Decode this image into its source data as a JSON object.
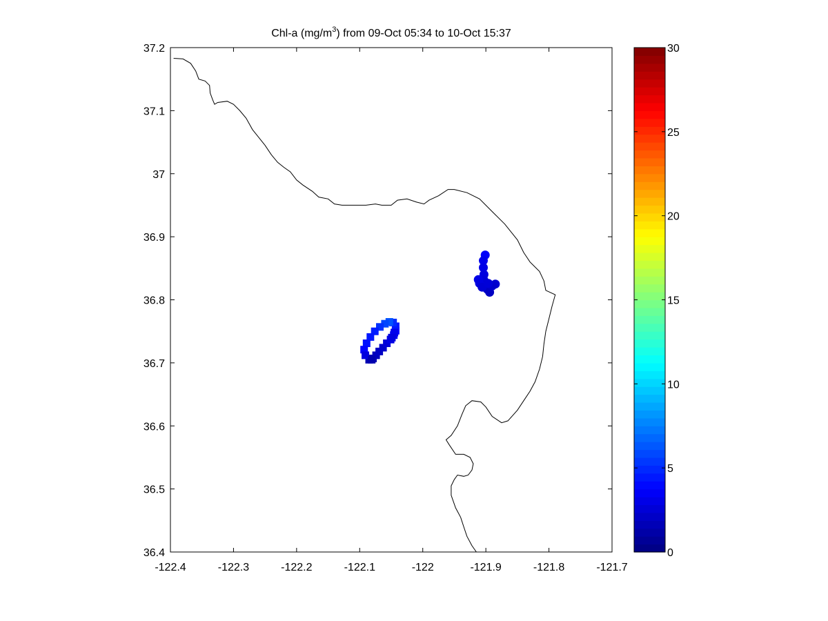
{
  "chart_data": {
    "type": "scatter",
    "title_prefix": "Chl-a (mg/m",
    "title_sup": "3",
    "title_suffix": ") from 09-Oct 05:34 to 10-Oct 15:37",
    "xlabel": "",
    "ylabel": "",
    "xlim": [
      -122.4,
      -121.7
    ],
    "ylim": [
      36.4,
      37.2
    ],
    "xticks": [
      "-122.4",
      "-122.3",
      "-122.2",
      "-122.1",
      "-122",
      "-121.9",
      "-121.8",
      "-121.7"
    ],
    "yticks": [
      "36.4",
      "36.5",
      "36.6",
      "36.7",
      "36.8",
      "36.9",
      "37",
      "37.1",
      "37.2"
    ],
    "grid": false,
    "colormap": "jet",
    "colorbar": {
      "range": [
        0,
        30
      ],
      "ticks": [
        "0",
        "5",
        "10",
        "15",
        "20",
        "25",
        "30"
      ]
    },
    "coastline": [
      [
        -122.395,
        37.183
      ],
      [
        -122.38,
        37.182
      ],
      [
        -122.368,
        37.175
      ],
      [
        -122.36,
        37.163
      ],
      [
        -122.355,
        37.15
      ],
      [
        -122.345,
        37.147
      ],
      [
        -122.338,
        37.14
      ],
      [
        -122.337,
        37.128
      ],
      [
        -122.333,
        37.117
      ],
      [
        -122.33,
        37.11
      ],
      [
        -122.325,
        37.113
      ],
      [
        -122.31,
        37.115
      ],
      [
        -122.3,
        37.11
      ],
      [
        -122.29,
        37.1
      ],
      [
        -122.28,
        37.088
      ],
      [
        -122.27,
        37.07
      ],
      [
        -122.262,
        37.06
      ],
      [
        -122.25,
        37.045
      ],
      [
        -122.24,
        37.03
      ],
      [
        -122.23,
        37.018
      ],
      [
        -122.22,
        37.01
      ],
      [
        -122.21,
        37.003
      ],
      [
        -122.2,
        36.99
      ],
      [
        -122.19,
        36.982
      ],
      [
        -122.175,
        36.972
      ],
      [
        -122.165,
        36.963
      ],
      [
        -122.15,
        36.96
      ],
      [
        -122.14,
        36.952
      ],
      [
        -122.128,
        36.95
      ],
      [
        -122.11,
        36.95
      ],
      [
        -122.09,
        36.95
      ],
      [
        -122.075,
        36.952
      ],
      [
        -122.065,
        36.95
      ],
      [
        -122.05,
        36.95
      ],
      [
        -122.04,
        36.958
      ],
      [
        -122.025,
        36.96
      ],
      [
        -122.01,
        36.955
      ],
      [
        -121.998,
        36.952
      ],
      [
        -121.99,
        36.958
      ],
      [
        -121.975,
        36.965
      ],
      [
        -121.96,
        36.975
      ],
      [
        -121.95,
        36.975
      ],
      [
        -121.93,
        36.97
      ],
      [
        -121.91,
        36.96
      ],
      [
        -121.89,
        36.94
      ],
      [
        -121.87,
        36.92
      ],
      [
        -121.85,
        36.895
      ],
      [
        -121.84,
        36.875
      ],
      [
        -121.83,
        36.86
      ],
      [
        -121.815,
        36.845
      ],
      [
        -121.808,
        36.83
      ],
      [
        -121.805,
        36.815
      ],
      [
        -121.79,
        36.808
      ],
      [
        -121.795,
        36.79
      ],
      [
        -121.8,
        36.77
      ],
      [
        -121.805,
        36.75
      ],
      [
        -121.808,
        36.73
      ],
      [
        -121.81,
        36.71
      ],
      [
        -121.815,
        36.69
      ],
      [
        -121.822,
        36.67
      ],
      [
        -121.83,
        36.655
      ],
      [
        -121.84,
        36.64
      ],
      [
        -121.85,
        36.625
      ],
      [
        -121.865,
        36.608
      ],
      [
        -121.875,
        36.605
      ],
      [
        -121.89,
        36.615
      ],
      [
        -121.9,
        36.63
      ],
      [
        -121.908,
        36.638
      ],
      [
        -121.922,
        36.64
      ],
      [
        -121.932,
        36.632
      ],
      [
        -121.938,
        36.618
      ],
      [
        -121.945,
        36.6
      ],
      [
        -121.955,
        36.585
      ],
      [
        -121.963,
        36.578
      ],
      [
        -121.958,
        36.57
      ],
      [
        -121.948,
        36.555
      ],
      [
        -121.935,
        36.555
      ],
      [
        -121.925,
        36.55
      ],
      [
        -121.92,
        36.54
      ],
      [
        -121.922,
        36.53
      ],
      [
        -121.928,
        36.522
      ],
      [
        -121.935,
        36.52
      ],
      [
        -121.945,
        36.522
      ],
      [
        -121.95,
        36.515
      ],
      [
        -121.955,
        36.505
      ],
      [
        -121.955,
        36.49
      ],
      [
        -121.948,
        36.47
      ],
      [
        -121.94,
        36.455
      ],
      [
        -121.935,
        36.44
      ],
      [
        -121.93,
        36.425
      ],
      [
        -121.922,
        36.41
      ],
      [
        -121.915,
        36.4
      ]
    ],
    "points": [
      {
        "x": -122.085,
        "y": 36.705,
        "value": 1.5,
        "marker": "square"
      },
      {
        "x": -122.079,
        "y": 36.707,
        "value": 1.6,
        "marker": "square"
      },
      {
        "x": -122.074,
        "y": 36.712,
        "value": 1.8,
        "marker": "square"
      },
      {
        "x": -122.069,
        "y": 36.718,
        "value": 2.0,
        "marker": "square"
      },
      {
        "x": -122.063,
        "y": 36.724,
        "value": 2.2,
        "marker": "square"
      },
      {
        "x": -122.057,
        "y": 36.731,
        "value": 2.6,
        "marker": "square"
      },
      {
        "x": -122.051,
        "y": 36.737,
        "value": 3.0,
        "marker": "square"
      },
      {
        "x": -122.046,
        "y": 36.744,
        "value": 3.4,
        "marker": "square"
      },
      {
        "x": -122.043,
        "y": 36.751,
        "value": 3.8,
        "marker": "square"
      },
      {
        "x": -122.043,
        "y": 36.758,
        "value": 4.4,
        "marker": "square"
      },
      {
        "x": -122.047,
        "y": 36.764,
        "value": 5.0,
        "marker": "square"
      },
      {
        "x": -122.053,
        "y": 36.765,
        "value": 6.2,
        "marker": "square"
      },
      {
        "x": -122.06,
        "y": 36.762,
        "value": 5.8,
        "marker": "square"
      },
      {
        "x": -122.068,
        "y": 36.757,
        "value": 5.2,
        "marker": "square"
      },
      {
        "x": -122.076,
        "y": 36.75,
        "value": 4.6,
        "marker": "square"
      },
      {
        "x": -122.083,
        "y": 36.741,
        "value": 4.4,
        "marker": "square"
      },
      {
        "x": -122.089,
        "y": 36.731,
        "value": 4.2,
        "marker": "square"
      },
      {
        "x": -122.093,
        "y": 36.721,
        "value": 3.8,
        "marker": "square"
      },
      {
        "x": -122.091,
        "y": 36.712,
        "value": 2.8,
        "marker": "square"
      },
      {
        "x": -122.081,
        "y": 36.705,
        "value": 1.4,
        "marker": "square"
      },
      {
        "x": -122.045,
        "y": 36.748,
        "value": 3.2,
        "marker": "square"
      },
      {
        "x": -122.049,
        "y": 36.74,
        "value": 2.8,
        "marker": "square"
      },
      {
        "x": -121.901,
        "y": 36.871,
        "value": 3.6,
        "marker": "circle"
      },
      {
        "x": -121.904,
        "y": 36.862,
        "value": 3.2,
        "marker": "circle"
      },
      {
        "x": -121.904,
        "y": 36.851,
        "value": 3.0,
        "marker": "circle"
      },
      {
        "x": -121.903,
        "y": 36.84,
        "value": 2.8,
        "marker": "circle"
      },
      {
        "x": -121.903,
        "y": 36.831,
        "value": 2.6,
        "marker": "circle"
      },
      {
        "x": -121.902,
        "y": 36.823,
        "value": 2.4,
        "marker": "circle"
      },
      {
        "x": -121.898,
        "y": 36.817,
        "value": 2.2,
        "marker": "circle"
      },
      {
        "x": -121.894,
        "y": 36.812,
        "value": 2.0,
        "marker": "circle"
      },
      {
        "x": -121.912,
        "y": 36.832,
        "value": 3.0,
        "marker": "circle"
      },
      {
        "x": -121.91,
        "y": 36.826,
        "value": 2.8,
        "marker": "circle"
      },
      {
        "x": -121.906,
        "y": 36.82,
        "value": 2.5,
        "marker": "circle"
      },
      {
        "x": -121.885,
        "y": 36.825,
        "value": 2.4,
        "marker": "circle"
      },
      {
        "x": -121.89,
        "y": 36.822,
        "value": 2.2,
        "marker": "circle"
      },
      {
        "x": -121.896,
        "y": 36.826,
        "value": 2.6,
        "marker": "circle"
      }
    ]
  }
}
